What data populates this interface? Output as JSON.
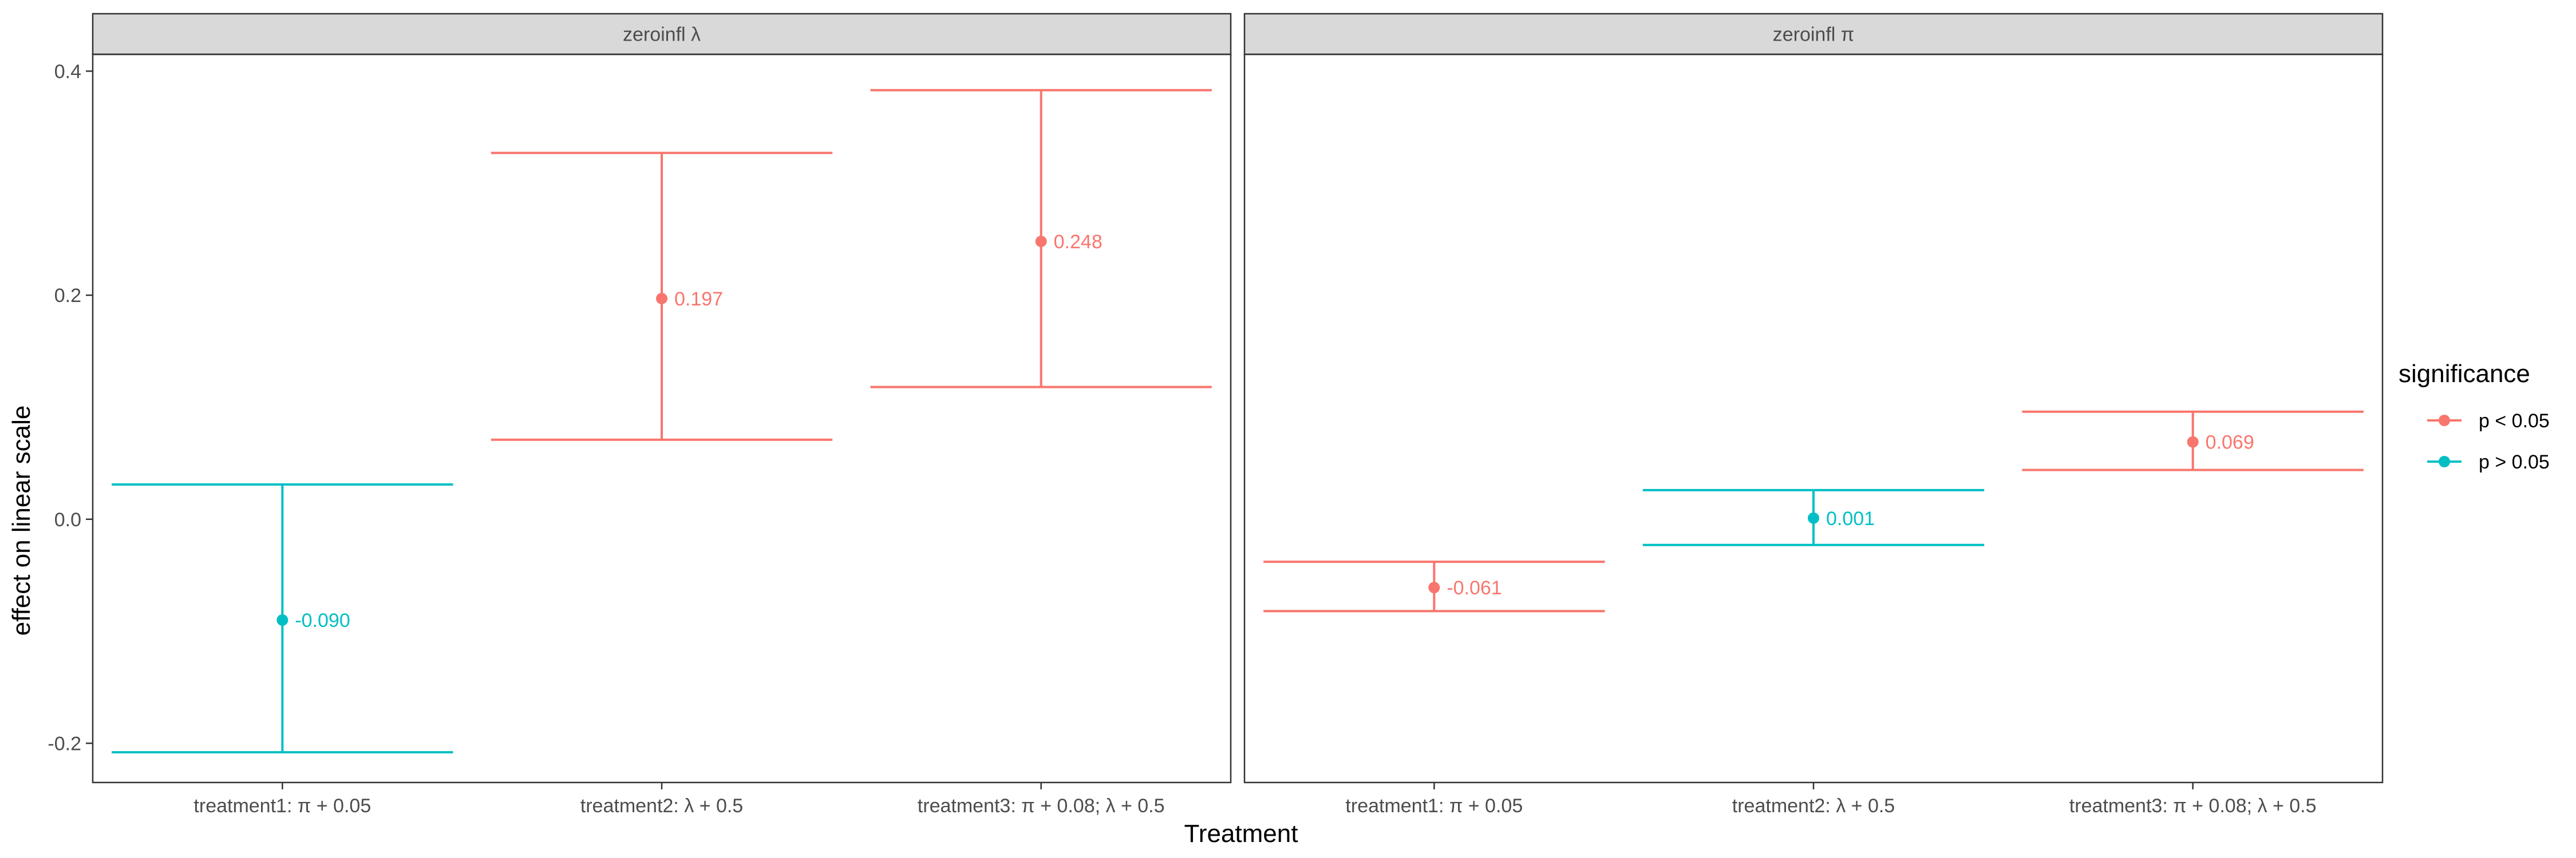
{
  "chart_data": {
    "type": "errorbar",
    "xlabel": "Treatment",
    "ylabel": "effect on linear scale",
    "ylim": [
      -0.235,
      0.415
    ],
    "yticks": [
      -0.2,
      0.0,
      0.2,
      0.4
    ],
    "ytick_labels": [
      "-0.2",
      "0.0",
      "0.2",
      "0.4"
    ],
    "categories": [
      "treatment1: π + 0.05",
      "treatment2: λ + 0.5",
      "treatment3: π + 0.08; λ + 0.5"
    ],
    "grid": false,
    "legend": {
      "title": "significance",
      "placement": "right",
      "entries": [
        {
          "label": "p < 0.05",
          "color": "#F8766D"
        },
        {
          "label": "p > 0.05",
          "color": "#00BFC4"
        }
      ]
    },
    "panels": [
      {
        "title": "zeroinfl λ",
        "points": [
          {
            "category": "treatment1: π + 0.05",
            "estimate": -0.09,
            "lower": -0.208,
            "upper": 0.031,
            "label": "-0.090",
            "significance": "p > 0.05"
          },
          {
            "category": "treatment2: λ + 0.5",
            "estimate": 0.197,
            "lower": 0.071,
            "upper": 0.327,
            "label": "0.197",
            "significance": "p < 0.05"
          },
          {
            "category": "treatment3: π + 0.08; λ + 0.5",
            "estimate": 0.248,
            "lower": 0.118,
            "upper": 0.383,
            "label": "0.248",
            "significance": "p < 0.05"
          }
        ]
      },
      {
        "title": "zeroinfl π",
        "points": [
          {
            "category": "treatment1: π + 0.05",
            "estimate": -0.061,
            "lower": -0.082,
            "upper": -0.038,
            "label": "-0.061",
            "significance": "p < 0.05"
          },
          {
            "category": "treatment2: λ + 0.5",
            "estimate": 0.001,
            "lower": -0.023,
            "upper": 0.026,
            "label": "0.001",
            "significance": "p > 0.05"
          },
          {
            "category": "treatment3: π + 0.08; λ + 0.5",
            "estimate": 0.069,
            "lower": 0.044,
            "upper": 0.096,
            "label": "0.069",
            "significance": "p < 0.05"
          }
        ]
      }
    ]
  }
}
